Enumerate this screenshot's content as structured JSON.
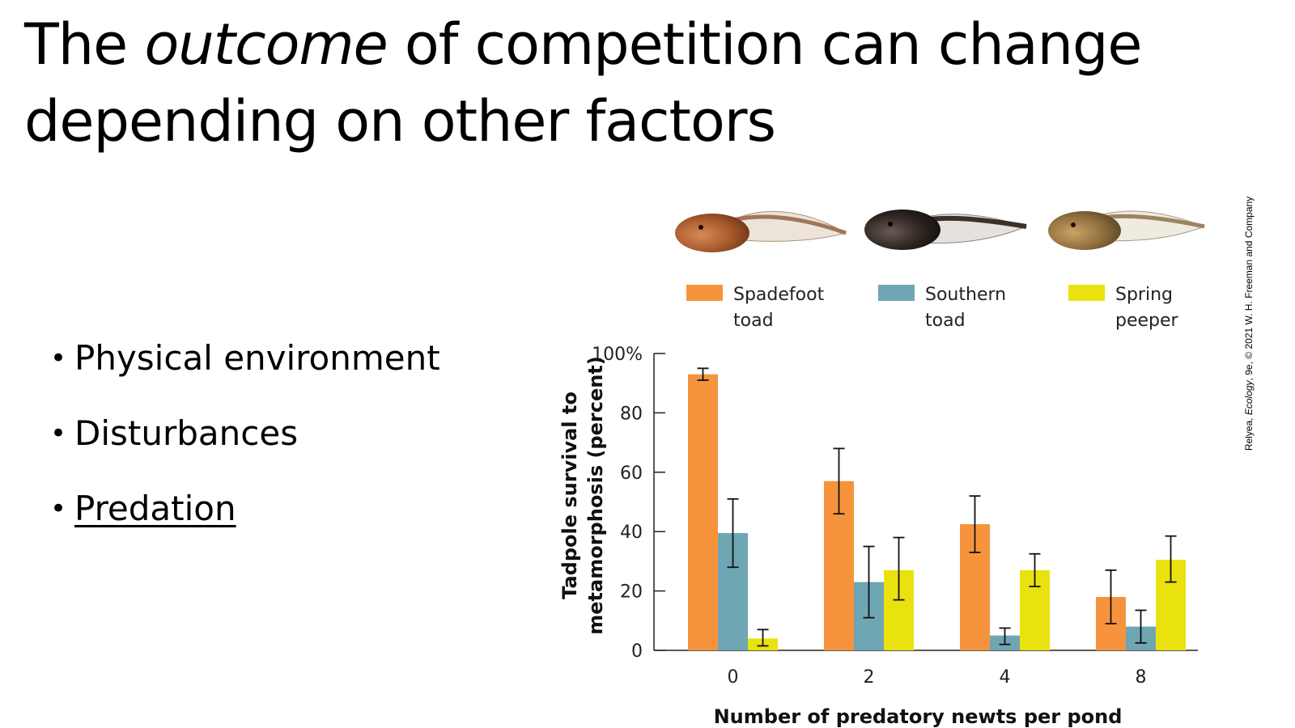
{
  "slide": {
    "title_pre": "The ",
    "title_em": "outcome",
    "title_post": " of competition can change depending on other factors",
    "bullets": [
      "Physical environment",
      "Disturbances",
      "Predation"
    ],
    "bullet_glyph": "•",
    "credit_pre": "Relyea, ",
    "credit_em": "Ecology",
    "credit_post": ", 9e, © 2021 W. H. Freeman and Company"
  },
  "chart_data": {
    "type": "bar",
    "title": "",
    "xlabel": "Number of predatory newts per pond",
    "ylabel_lines": [
      "Tadpole survival to",
      "metamorphosis (percent)"
    ],
    "categories": [
      "0",
      "2",
      "4",
      "8"
    ],
    "ylim": [
      0,
      100
    ],
    "yticks": [
      "0",
      "20",
      "40",
      "60",
      "80",
      "100%"
    ],
    "ytick_values": [
      0,
      20,
      40,
      60,
      80,
      100
    ],
    "legend_position": "top",
    "series": [
      {
        "name_lines": [
          "Spadefoot",
          "toad"
        ],
        "color": "#F5943D",
        "values": [
          93,
          57,
          42.5,
          18
        ],
        "err_low": [
          91,
          46,
          33,
          9
        ],
        "err_high": [
          95,
          68,
          52,
          27
        ]
      },
      {
        "name_lines": [
          "Southern",
          "toad"
        ],
        "color": "#6FA6B4",
        "values": [
          39.5,
          23,
          5,
          8
        ],
        "err_low": [
          28,
          11,
          2,
          2.5
        ],
        "err_high": [
          51,
          35,
          7.5,
          13.5
        ]
      },
      {
        "name_lines": [
          "Spring",
          "peeper"
        ],
        "color": "#EAE20F",
        "values": [
          4,
          27,
          27,
          30.5
        ],
        "err_low": [
          1.5,
          17,
          21.5,
          23
        ],
        "err_high": [
          7,
          38,
          32.5,
          38.5
        ]
      }
    ]
  }
}
